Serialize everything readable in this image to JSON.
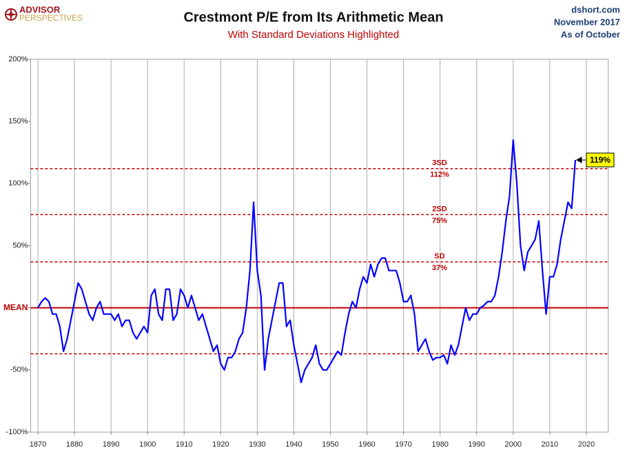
{
  "brand": {
    "name": "ADVISOR",
    "sub": "PERSPECTIVES"
  },
  "source": {
    "site": "dshort.com",
    "date": "November 2017",
    "as_of": "As of October"
  },
  "chart_data": {
    "type": "line",
    "title": "Crestmont P/E from Its Arithmetic Mean",
    "subtitle": "With Standard Deviations Highlighted",
    "color": "#0000ff",
    "xlim": [
      1868,
      2026
    ],
    "xticks": [
      1870,
      1880,
      1890,
      1900,
      1910,
      1920,
      1930,
      1940,
      1950,
      1960,
      1970,
      1980,
      1990,
      2000,
      2010,
      2020
    ],
    "ylim": [
      -100,
      200
    ],
    "yticks": [
      {
        "value": 200,
        "label": "200%"
      },
      {
        "value": 150,
        "label": "150%"
      },
      {
        "value": 100,
        "label": "100%"
      },
      {
        "value": 50,
        "label": "50%"
      },
      {
        "value": 0,
        "label": "MEAN"
      },
      {
        "value": -50,
        "label": "-50%"
      },
      {
        "value": -100,
        "label": "-100%"
      }
    ],
    "xgrid": true,
    "mean_line": {
      "value": 0,
      "color": "#c00000"
    },
    "reference_lines": [
      {
        "value": 112,
        "label": "3SD",
        "value_label": "112%",
        "color": "#c00000"
      },
      {
        "value": 75,
        "label": "2SD",
        "value_label": "75%",
        "color": "#c00000"
      },
      {
        "value": 37,
        "label": "SD",
        "value_label": "37%",
        "color": "#c00000"
      },
      {
        "value": -37,
        "color": "#c00000"
      }
    ],
    "callout": {
      "x": 2017,
      "value": 119,
      "label": "119%"
    },
    "x": [
      1870,
      1871,
      1872,
      1873,
      1874,
      1875,
      1876,
      1877,
      1878,
      1879,
      1880,
      1881,
      1882,
      1883,
      1884,
      1885,
      1886,
      1887,
      1888,
      1889,
      1890,
      1891,
      1892,
      1893,
      1894,
      1895,
      1896,
      1897,
      1898,
      1899,
      1900,
      1901,
      1902,
      1903,
      1904,
      1905,
      1906,
      1907,
      1908,
      1909,
      1910,
      1911,
      1912,
      1913,
      1914,
      1915,
      1916,
      1917,
      1918,
      1919,
      1920,
      1921,
      1922,
      1923,
      1924,
      1925,
      1926,
      1927,
      1928,
      1929,
      1930,
      1931,
      1932,
      1933,
      1934,
      1935,
      1936,
      1937,
      1938,
      1939,
      1940,
      1941,
      1942,
      1943,
      1944,
      1945,
      1946,
      1947,
      1948,
      1949,
      1950,
      1951,
      1952,
      1953,
      1954,
      1955,
      1956,
      1957,
      1958,
      1959,
      1960,
      1961,
      1962,
      1963,
      1964,
      1965,
      1966,
      1967,
      1968,
      1969,
      1970,
      1971,
      1972,
      1973,
      1974,
      1975,
      1976,
      1977,
      1978,
      1979,
      1980,
      1981,
      1982,
      1983,
      1984,
      1985,
      1986,
      1987,
      1988,
      1989,
      1990,
      1991,
      1992,
      1993,
      1994,
      1995,
      1996,
      1997,
      1998,
      1999,
      2000,
      2001,
      2002,
      2003,
      2004,
      2005,
      2006,
      2007,
      2008,
      2009,
      2010,
      2011,
      2012,
      2013,
      2014,
      2015,
      2016,
      2017
    ],
    "values": [
      0,
      5,
      8,
      5,
      -5,
      -5,
      -15,
      -35,
      -25,
      -10,
      5,
      20,
      15,
      5,
      -5,
      -10,
      0,
      5,
      -5,
      -5,
      -5,
      -10,
      -5,
      -15,
      -10,
      -10,
      -20,
      -25,
      -20,
      -15,
      -20,
      10,
      15,
      -5,
      -10,
      15,
      15,
      -10,
      -5,
      15,
      10,
      0,
      10,
      0,
      -10,
      -5,
      -15,
      -25,
      -35,
      -30,
      -45,
      -50,
      -40,
      -40,
      -35,
      -25,
      -20,
      0,
      30,
      85,
      30,
      10,
      -50,
      -25,
      -10,
      5,
      20,
      20,
      -15,
      -10,
      -30,
      -45,
      -60,
      -50,
      -45,
      -40,
      -30,
      -45,
      -50,
      -50,
      -45,
      -40,
      -35,
      -38,
      -20,
      -5,
      5,
      0,
      15,
      25,
      20,
      35,
      25,
      35,
      40,
      40,
      30,
      30,
      30,
      20,
      5,
      5,
      10,
      -5,
      -35,
      -30,
      -25,
      -35,
      -42,
      -40,
      -40,
      -38,
      -45,
      -30,
      -38,
      -30,
      -15,
      0,
      -10,
      -5,
      -5,
      0,
      2,
      5,
      5,
      10,
      25,
      45,
      70,
      90,
      135,
      100,
      50,
      30,
      45,
      50,
      55,
      70,
      30,
      -5,
      25,
      25,
      35,
      55,
      70,
      85,
      80,
      119
    ]
  }
}
